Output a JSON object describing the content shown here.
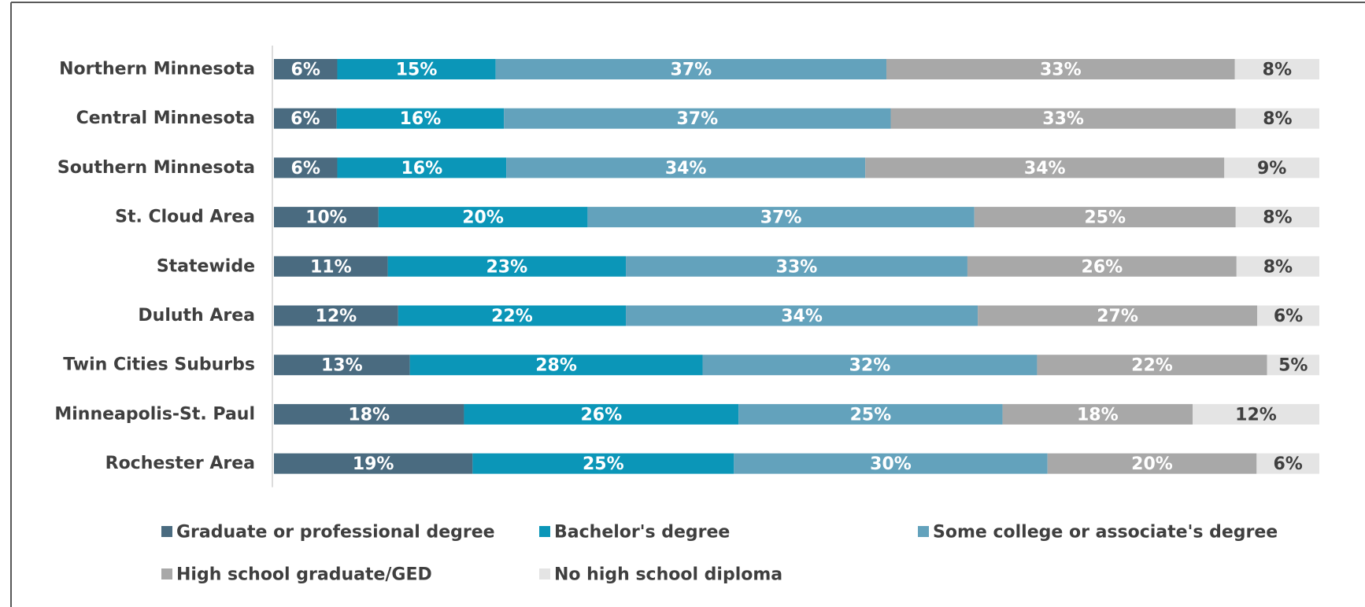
{
  "chart_data": {
    "type": "bar",
    "orientation": "horizontal",
    "stacked": "percent",
    "categories": [
      "Northern Minnesota",
      "Central Minnesota",
      "Southern Minnesota",
      "St. Cloud Area",
      "Statewide",
      "Duluth Area",
      "Twin Cities Suburbs",
      "Minneapolis-St. Paul",
      "Rochester Area"
    ],
    "series": [
      {
        "name": "Graduate or professional degree",
        "color": "#4a6b80",
        "label_color": "#ffffff",
        "values": [
          6,
          6,
          6,
          10,
          11,
          12,
          13,
          18,
          19
        ]
      },
      {
        "name": "Bachelor's degree",
        "color": "#0b96b8",
        "label_color": "#ffffff",
        "values": [
          15,
          16,
          16,
          20,
          23,
          22,
          28,
          26,
          25
        ]
      },
      {
        "name": "Some college or associate's degree",
        "color": "#63a2bc",
        "label_color": "#ffffff",
        "values": [
          37,
          37,
          34,
          37,
          33,
          34,
          32,
          25,
          30
        ]
      },
      {
        "name": "High school graduate/GED",
        "color": "#a8a8a8",
        "label_color": "#ffffff",
        "values": [
          33,
          33,
          34,
          25,
          26,
          27,
          22,
          18,
          20
        ]
      },
      {
        "name": "No high school diploma",
        "color": "#e4e4e4",
        "label_color": "#3f3f3f",
        "values": [
          8,
          8,
          9,
          8,
          8,
          6,
          5,
          12,
          6
        ]
      }
    ],
    "value_suffix": "%",
    "title": "",
    "xlabel": "",
    "ylabel": "",
    "xlim": [
      0,
      100
    ],
    "grid": false,
    "legend_position": "bottom"
  }
}
